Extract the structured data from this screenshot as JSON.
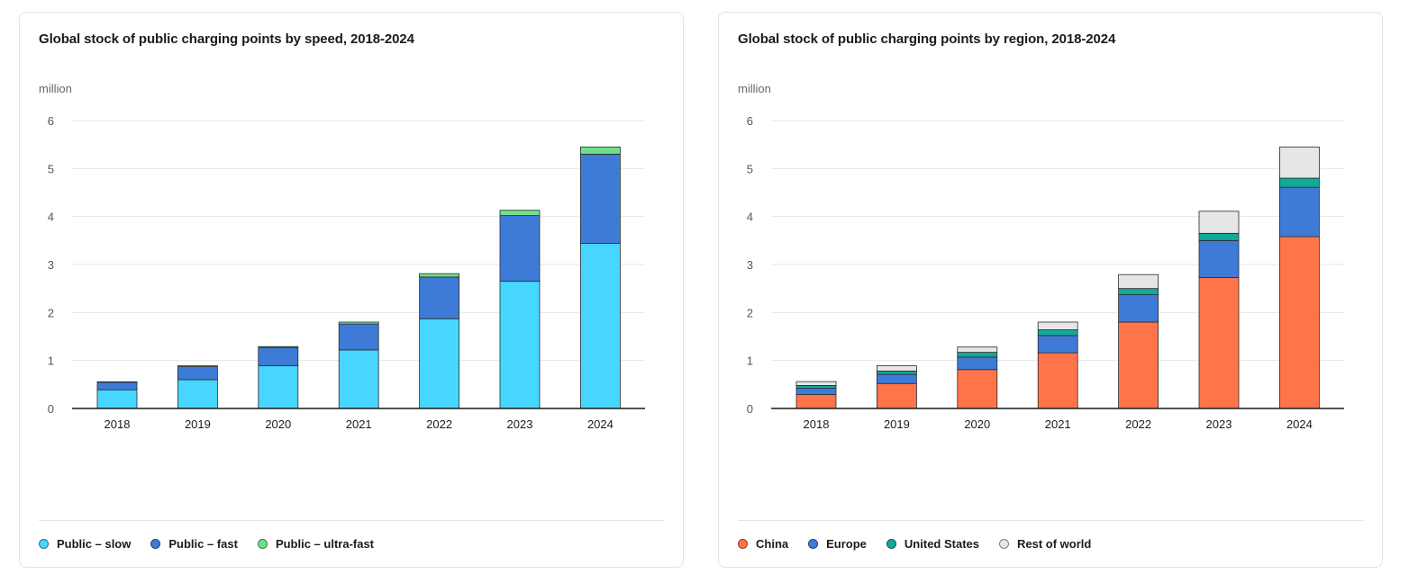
{
  "charts": {
    "left": {
      "title": "Global stock of public charging points by speed, 2018-2024",
      "unit": "million",
      "legend": [
        {
          "label": "Public – slow",
          "color": "#47d6ff"
        },
        {
          "label": "Public – fast",
          "color": "#3e7bd6"
        },
        {
          "label": "Public – ultra-fast",
          "color": "#6ee08a"
        }
      ]
    },
    "right": {
      "title": "Global stock of public charging points by region, 2018-2024",
      "unit": "million",
      "legend": [
        {
          "label": "China",
          "color": "#ff7549"
        },
        {
          "label": "Europe",
          "color": "#3e7bd6"
        },
        {
          "label": "United States",
          "color": "#12a99a"
        },
        {
          "label": "Rest of world",
          "color": "#e6e6e6"
        }
      ]
    }
  },
  "chart_data": [
    {
      "type": "bar",
      "stacked": true,
      "title": "Global stock of public charging points by speed, 2018-2024",
      "ylabel": "million",
      "ylim": [
        0,
        6
      ],
      "yticks": [
        0,
        1,
        2,
        3,
        4,
        5,
        6
      ],
      "grid": true,
      "legend_position": "bottom",
      "categories": [
        "2018",
        "2019",
        "2020",
        "2021",
        "2022",
        "2023",
        "2024"
      ],
      "series": [
        {
          "name": "Public – slow",
          "color": "#47d6ff",
          "values": [
            0.39,
            0.6,
            0.89,
            1.22,
            1.87,
            2.65,
            3.44
          ]
        },
        {
          "name": "Public – fast",
          "color": "#3e7bd6",
          "values": [
            0.16,
            0.27,
            0.38,
            0.54,
            0.87,
            1.37,
            1.86
          ]
        },
        {
          "name": "Public – ultra-fast",
          "color": "#6ee08a",
          "values": [
            0.005,
            0.02,
            0.02,
            0.04,
            0.07,
            0.11,
            0.15
          ]
        }
      ]
    },
    {
      "type": "bar",
      "stacked": true,
      "title": "Global stock of public charging points by region, 2018-2024",
      "ylabel": "million",
      "ylim": [
        0,
        6
      ],
      "yticks": [
        0,
        1,
        2,
        3,
        4,
        5,
        6
      ],
      "grid": true,
      "legend_position": "bottom",
      "categories": [
        "2018",
        "2019",
        "2020",
        "2021",
        "2022",
        "2023",
        "2024"
      ],
      "series": [
        {
          "name": "China",
          "color": "#ff7549",
          "values": [
            0.29,
            0.52,
            0.81,
            1.16,
            1.8,
            2.73,
            3.58
          ]
        },
        {
          "name": "Europe",
          "color": "#3e7bd6",
          "values": [
            0.13,
            0.19,
            0.26,
            0.36,
            0.57,
            0.77,
            1.03
          ]
        },
        {
          "name": "United States",
          "color": "#12a99a",
          "values": [
            0.06,
            0.07,
            0.1,
            0.12,
            0.13,
            0.15,
            0.19
          ]
        },
        {
          "name": "Rest of world",
          "color": "#e6e6e6",
          "values": [
            0.08,
            0.11,
            0.11,
            0.16,
            0.29,
            0.46,
            0.65
          ]
        }
      ]
    }
  ]
}
